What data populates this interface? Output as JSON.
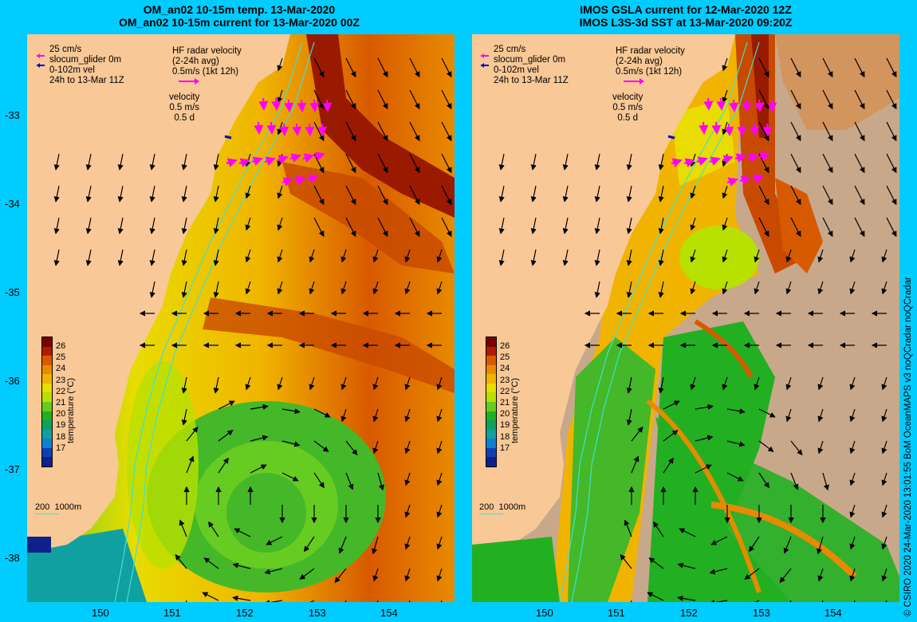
{
  "left_panel": {
    "title_line1": "OM_an02 10-15m temp. 13-Mar-2020",
    "title_line2": "OM_an02 10-15m current for 13-Mar-2020 00Z"
  },
  "right_panel": {
    "title_line1": "IMOS GSLA current for 12-Mar-2020 12Z",
    "title_line2": "IMOS L3S-3d SST at 13-Mar-2020 09:20Z"
  },
  "legend": {
    "glider_speed": "25 cm/s",
    "glider_label": "slocum_glider 0m",
    "vel_label": "0-102m vel",
    "time_window": "24h to 13-Mar 11Z",
    "hf_title": "HF radar velocity",
    "hf_avg": "(2-24h avg)",
    "hf_speed": "0.5m/s (1kt 12h)",
    "vel_title": "velocity",
    "vel_speed": "0.5 m/s",
    "vel_time": "0.5 d"
  },
  "scale_bar": {
    "shallow": "200",
    "deep": "1000m"
  },
  "y_axis_labels": [
    "-33",
    "-34",
    "-35",
    "-36",
    "-37",
    "-38"
  ],
  "x_axis_labels": [
    "150",
    "151",
    "152",
    "153",
    "154"
  ],
  "colorbar": {
    "ticks": [
      "26",
      "25",
      "24",
      "23",
      "22",
      "21",
      "20",
      "19",
      "18",
      "17"
    ],
    "label": "temperature (°C)",
    "colors": [
      "#7a0000",
      "#b01c00",
      "#d85a00",
      "#e88a00",
      "#f0b400",
      "#e8dc00",
      "#b8e000",
      "#66cc22",
      "#22b022",
      "#10a060",
      "#10a0a0",
      "#1080d0",
      "#1040b0",
      "#10208a"
    ]
  },
  "credit": "© CSIRO 2020  24-Mar-2020 13:01:55 BoM OceanMAPS v3 noQCradar noQCradar",
  "colors": {
    "background": "#00ccff",
    "land": "#f8c896",
    "cloud": "#c8a88a",
    "glider_arrow": "#ff00ff",
    "vel_arrow": "#0000cc",
    "isobath": "#40e0d0"
  },
  "icons": {
    "hf_key": "magenta-arrow-icon",
    "glider_key": "magenta-arrow-icon",
    "vel_key": "blue-arrow-icon"
  }
}
